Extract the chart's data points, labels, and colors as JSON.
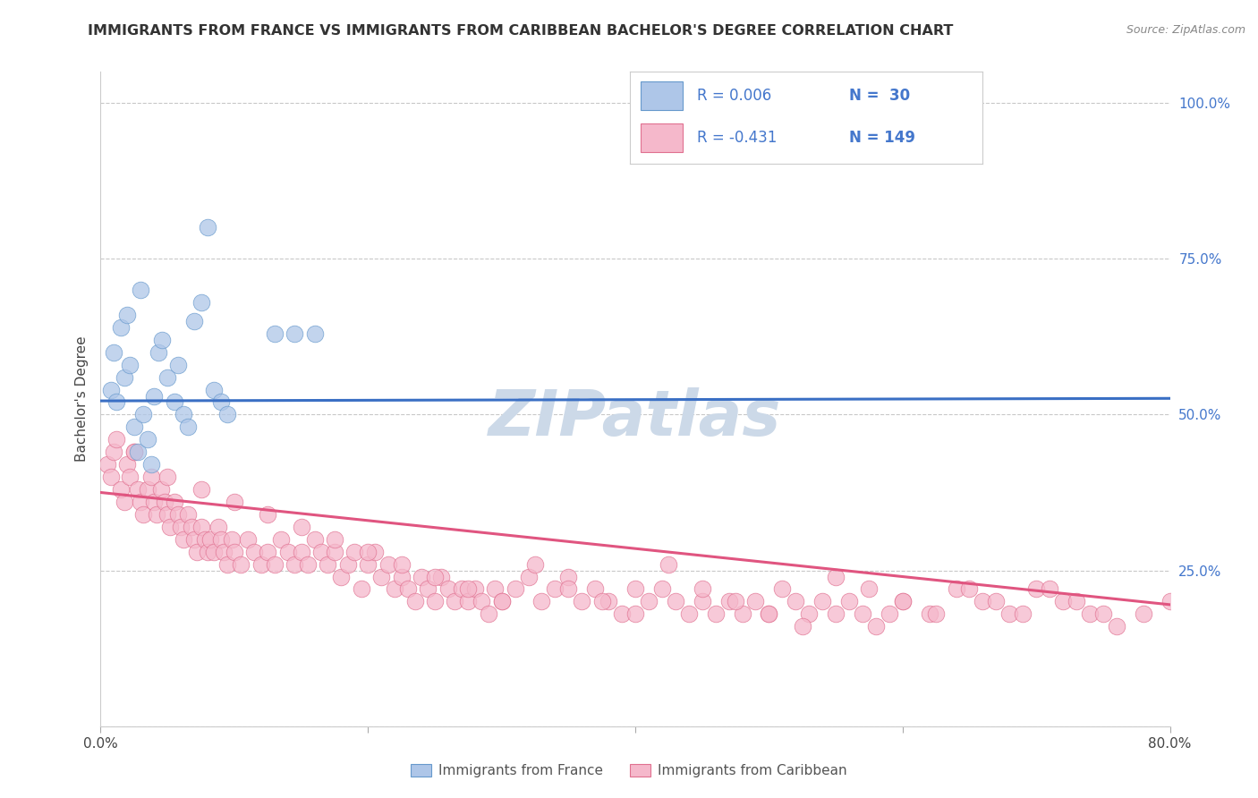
{
  "title": "IMMIGRANTS FROM FRANCE VS IMMIGRANTS FROM CARIBBEAN BACHELOR'S DEGREE CORRELATION CHART",
  "source": "Source: ZipAtlas.com",
  "ylabel": "Bachelor's Degree",
  "xlim": [
    0.0,
    0.8
  ],
  "ylim": [
    0.0,
    1.05
  ],
  "xticks": [
    0.0,
    0.2,
    0.4,
    0.6,
    0.8
  ],
  "xticklabels": [
    "0.0%",
    "",
    "",
    "",
    "80.0%"
  ],
  "yticks": [
    0.0,
    0.25,
    0.5,
    0.75,
    1.0
  ],
  "yticklabels": [
    "",
    "25.0%",
    "50.0%",
    "75.0%",
    "100.0%"
  ],
  "france_color": "#aec6e8",
  "france_edge": "#6699cc",
  "caribbean_color": "#f5b8cb",
  "caribbean_edge": "#e07090",
  "france_line_color": "#3a6fc4",
  "caribbean_line_color": "#e05580",
  "legend_france_label": "R = 0.006   N =  30",
  "legend_caribbean_label": "R = -0.431   N = 149",
  "watermark": "ZIPatlas",
  "france_scatter_x": [
    0.008,
    0.012,
    0.018,
    0.022,
    0.025,
    0.028,
    0.032,
    0.035,
    0.038,
    0.04,
    0.043,
    0.046,
    0.05,
    0.055,
    0.058,
    0.062,
    0.065,
    0.07,
    0.075,
    0.08,
    0.085,
    0.09,
    0.095,
    0.01,
    0.015,
    0.02,
    0.03,
    0.13,
    0.145,
    0.16
  ],
  "france_scatter_y": [
    0.54,
    0.52,
    0.56,
    0.58,
    0.48,
    0.44,
    0.5,
    0.46,
    0.42,
    0.53,
    0.6,
    0.62,
    0.56,
    0.52,
    0.58,
    0.5,
    0.48,
    0.65,
    0.68,
    0.8,
    0.54,
    0.52,
    0.5,
    0.6,
    0.64,
    0.66,
    0.7,
    0.63,
    0.63,
    0.63
  ],
  "caribbean_scatter_x": [
    0.005,
    0.008,
    0.01,
    0.012,
    0.015,
    0.018,
    0.02,
    0.022,
    0.025,
    0.028,
    0.03,
    0.032,
    0.035,
    0.038,
    0.04,
    0.042,
    0.045,
    0.048,
    0.05,
    0.052,
    0.055,
    0.058,
    0.06,
    0.062,
    0.065,
    0.068,
    0.07,
    0.072,
    0.075,
    0.078,
    0.08,
    0.082,
    0.085,
    0.088,
    0.09,
    0.092,
    0.095,
    0.098,
    0.1,
    0.105,
    0.11,
    0.115,
    0.12,
    0.125,
    0.13,
    0.135,
    0.14,
    0.145,
    0.15,
    0.155,
    0.16,
    0.165,
    0.17,
    0.175,
    0.18,
    0.185,
    0.19,
    0.195,
    0.2,
    0.205,
    0.21,
    0.215,
    0.22,
    0.225,
    0.23,
    0.235,
    0.24,
    0.245,
    0.25,
    0.255,
    0.26,
    0.265,
    0.27,
    0.275,
    0.28,
    0.285,
    0.29,
    0.295,
    0.3,
    0.31,
    0.32,
    0.33,
    0.34,
    0.35,
    0.36,
    0.37,
    0.38,
    0.39,
    0.4,
    0.41,
    0.42,
    0.43,
    0.44,
    0.45,
    0.46,
    0.47,
    0.48,
    0.49,
    0.5,
    0.51,
    0.52,
    0.53,
    0.54,
    0.55,
    0.56,
    0.57,
    0.58,
    0.59,
    0.6,
    0.62,
    0.64,
    0.66,
    0.68,
    0.7,
    0.72,
    0.74,
    0.76,
    0.78,
    0.8,
    0.025,
    0.05,
    0.075,
    0.1,
    0.125,
    0.15,
    0.175,
    0.2,
    0.225,
    0.25,
    0.275,
    0.3,
    0.325,
    0.35,
    0.375,
    0.4,
    0.425,
    0.45,
    0.475,
    0.5,
    0.525,
    0.55,
    0.575,
    0.6,
    0.625,
    0.65,
    0.67,
    0.69,
    0.71,
    0.73,
    0.75
  ],
  "caribbean_scatter_y": [
    0.42,
    0.4,
    0.44,
    0.46,
    0.38,
    0.36,
    0.42,
    0.4,
    0.44,
    0.38,
    0.36,
    0.34,
    0.38,
    0.4,
    0.36,
    0.34,
    0.38,
    0.36,
    0.34,
    0.32,
    0.36,
    0.34,
    0.32,
    0.3,
    0.34,
    0.32,
    0.3,
    0.28,
    0.32,
    0.3,
    0.28,
    0.3,
    0.28,
    0.32,
    0.3,
    0.28,
    0.26,
    0.3,
    0.28,
    0.26,
    0.3,
    0.28,
    0.26,
    0.28,
    0.26,
    0.3,
    0.28,
    0.26,
    0.28,
    0.26,
    0.3,
    0.28,
    0.26,
    0.28,
    0.24,
    0.26,
    0.28,
    0.22,
    0.26,
    0.28,
    0.24,
    0.26,
    0.22,
    0.24,
    0.22,
    0.2,
    0.24,
    0.22,
    0.2,
    0.24,
    0.22,
    0.2,
    0.22,
    0.2,
    0.22,
    0.2,
    0.18,
    0.22,
    0.2,
    0.22,
    0.24,
    0.2,
    0.22,
    0.24,
    0.2,
    0.22,
    0.2,
    0.18,
    0.22,
    0.2,
    0.22,
    0.2,
    0.18,
    0.2,
    0.18,
    0.2,
    0.18,
    0.2,
    0.18,
    0.22,
    0.2,
    0.18,
    0.2,
    0.18,
    0.2,
    0.18,
    0.16,
    0.18,
    0.2,
    0.18,
    0.22,
    0.2,
    0.18,
    0.22,
    0.2,
    0.18,
    0.16,
    0.18,
    0.2,
    0.44,
    0.4,
    0.38,
    0.36,
    0.34,
    0.32,
    0.3,
    0.28,
    0.26,
    0.24,
    0.22,
    0.2,
    0.26,
    0.22,
    0.2,
    0.18,
    0.26,
    0.22,
    0.2,
    0.18,
    0.16,
    0.24,
    0.22,
    0.2,
    0.18,
    0.22,
    0.2,
    0.18,
    0.22,
    0.2,
    0.18
  ],
  "france_trendline_x": [
    0.0,
    0.8
  ],
  "france_trendline_y": [
    0.522,
    0.526
  ],
  "caribbean_trendline_x": [
    0.0,
    0.8
  ],
  "caribbean_trendline_y": [
    0.375,
    0.195
  ],
  "background_color": "#ffffff",
  "grid_color": "#c8c8c8",
  "watermark_color": "#ccd9e8",
  "watermark_fontsize": 52,
  "title_fontsize": 11.5,
  "tick_fontsize": 11,
  "legend_fontsize": 12,
  "source_fontsize": 9
}
